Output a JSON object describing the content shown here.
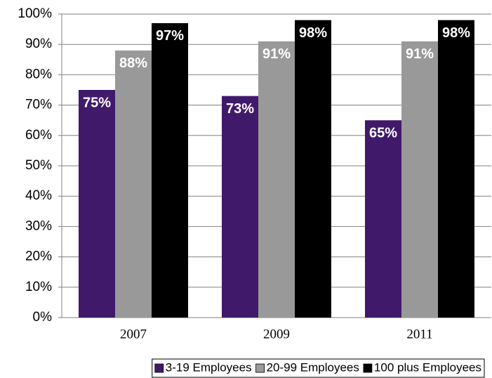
{
  "chart_data": {
    "type": "bar",
    "categories": [
      "2007",
      "2009",
      "2011"
    ],
    "series": [
      {
        "name": "3-19 Employees",
        "color": "#41196b",
        "values": [
          75,
          73,
          65
        ],
        "value_labels": [
          "75%",
          "73%",
          "65%"
        ]
      },
      {
        "name": "20-99 Employees",
        "color": "#999999",
        "values": [
          88,
          91,
          91
        ],
        "value_labels": [
          "88%",
          "91%",
          "91%"
        ]
      },
      {
        "name": "100 plus Employees",
        "color": "#000000",
        "values": [
          97,
          98,
          98
        ],
        "value_labels": [
          "97%",
          "98%",
          "98%"
        ]
      }
    ],
    "ylim": [
      0,
      100
    ],
    "yticks": [
      {
        "value": 0,
        "label": "0%"
      },
      {
        "value": 10,
        "label": "10%"
      },
      {
        "value": 20,
        "label": "20%"
      },
      {
        "value": 30,
        "label": "30%"
      },
      {
        "value": 40,
        "label": "40%"
      },
      {
        "value": 50,
        "label": "50%"
      },
      {
        "value": 60,
        "label": "60%"
      },
      {
        "value": 70,
        "label": "70%"
      },
      {
        "value": 80,
        "label": "80%"
      },
      {
        "value": 90,
        "label": "90%"
      },
      {
        "value": 100,
        "label": "100%"
      }
    ],
    "grid": true,
    "legend": "bottom"
  }
}
